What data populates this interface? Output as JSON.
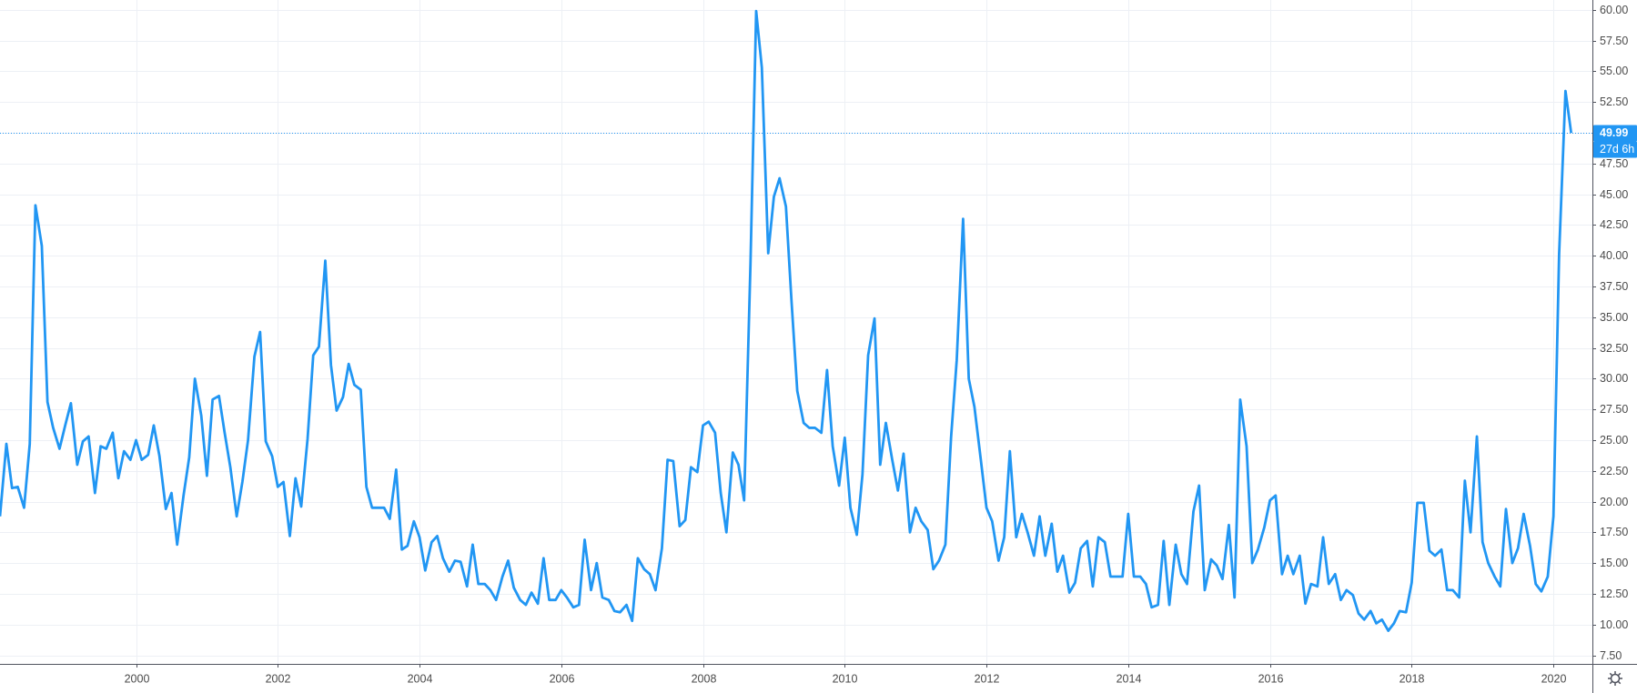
{
  "chart_data": {
    "type": "line",
    "color": "#2196f3",
    "grid": true,
    "xlim": [
      1998.08,
      2020.55
    ],
    "ylim": [
      6.8,
      60.8
    ],
    "xticks": [
      2000,
      2002,
      2004,
      2006,
      2008,
      2010,
      2012,
      2014,
      2016,
      2018,
      2020
    ],
    "yticks": [
      {
        "value": 7.5,
        "label": "7.50"
      },
      {
        "value": 10,
        "label": "10.00"
      },
      {
        "value": 12.5,
        "label": "12.50"
      },
      {
        "value": 15,
        "label": "15.00"
      },
      {
        "value": 17.5,
        "label": "17.50"
      },
      {
        "value": 20,
        "label": "20.00"
      },
      {
        "value": 22.5,
        "label": "22.50"
      },
      {
        "value": 25,
        "label": "25.00"
      },
      {
        "value": 27.5,
        "label": "27.50"
      },
      {
        "value": 30,
        "label": "30.00"
      },
      {
        "value": 32.5,
        "label": "32.50"
      },
      {
        "value": 35,
        "label": "35.00"
      },
      {
        "value": 37.5,
        "label": "37.50"
      },
      {
        "value": 40,
        "label": "40.00"
      },
      {
        "value": 42.5,
        "label": "42.50"
      },
      {
        "value": 45,
        "label": "45.00"
      },
      {
        "value": 47.5,
        "label": "47.50"
      },
      {
        "value": 50,
        "label": "50.00"
      },
      {
        "value": 52.5,
        "label": "52.50"
      },
      {
        "value": 55,
        "label": "55.00"
      },
      {
        "value": 57.5,
        "label": "57.50"
      },
      {
        "value": 60,
        "label": "60.00"
      }
    ],
    "x": [
      1998.08,
      1998.17,
      1998.25,
      1998.33,
      1998.42,
      1998.5,
      1998.58,
      1998.67,
      1998.75,
      1998.83,
      1998.92,
      1999,
      1999.08,
      1999.17,
      1999.25,
      1999.33,
      1999.42,
      1999.5,
      1999.58,
      1999.67,
      1999.75,
      1999.83,
      1999.92,
      2000,
      2000.08,
      2000.17,
      2000.25,
      2000.33,
      2000.42,
      2000.5,
      2000.58,
      2000.67,
      2000.75,
      2000.83,
      2000.92,
      2001,
      2001.08,
      2001.17,
      2001.25,
      2001.33,
      2001.42,
      2001.5,
      2001.58,
      2001.67,
      2001.75,
      2001.83,
      2001.92,
      2002,
      2002.08,
      2002.17,
      2002.25,
      2002.33,
      2002.42,
      2002.5,
      2002.58,
      2002.67,
      2002.75,
      2002.83,
      2002.92,
      2003,
      2003.08,
      2003.17,
      2003.25,
      2003.33,
      2003.42,
      2003.5,
      2003.58,
      2003.67,
      2003.75,
      2003.83,
      2003.92,
      2004,
      2004.08,
      2004.17,
      2004.25,
      2004.33,
      2004.42,
      2004.5,
      2004.58,
      2004.67,
      2004.75,
      2004.83,
      2004.92,
      2005,
      2005.08,
      2005.17,
      2005.25,
      2005.33,
      2005.42,
      2005.5,
      2005.58,
      2005.67,
      2005.75,
      2005.83,
      2005.92,
      2006,
      2006.08,
      2006.17,
      2006.25,
      2006.33,
      2006.42,
      2006.5,
      2006.58,
      2006.67,
      2006.75,
      2006.83,
      2006.92,
      2007,
      2007.08,
      2007.17,
      2007.25,
      2007.33,
      2007.42,
      2007.5,
      2007.58,
      2007.67,
      2007.75,
      2007.83,
      2007.92,
      2008,
      2008.08,
      2008.17,
      2008.25,
      2008.33,
      2008.42,
      2008.5,
      2008.58,
      2008.67,
      2008.75,
      2008.83,
      2008.92,
      2009,
      2009.08,
      2009.17,
      2009.25,
      2009.33,
      2009.42,
      2009.5,
      2009.58,
      2009.67,
      2009.75,
      2009.83,
      2009.92,
      2010,
      2010.08,
      2010.17,
      2010.25,
      2010.33,
      2010.42,
      2010.5,
      2010.58,
      2010.67,
      2010.75,
      2010.83,
      2010.92,
      2011,
      2011.08,
      2011.17,
      2011.25,
      2011.33,
      2011.42,
      2011.5,
      2011.58,
      2011.67,
      2011.75,
      2011.83,
      2011.92,
      2012,
      2012.08,
      2012.17,
      2012.25,
      2012.33,
      2012.42,
      2012.5,
      2012.58,
      2012.67,
      2012.75,
      2012.83,
      2012.92,
      2013,
      2013.08,
      2013.17,
      2013.25,
      2013.33,
      2013.42,
      2013.5,
      2013.58,
      2013.67,
      2013.75,
      2013.83,
      2013.92,
      2014,
      2014.08,
      2014.17,
      2014.25,
      2014.33,
      2014.42,
      2014.5,
      2014.58,
      2014.67,
      2014.75,
      2014.83,
      2014.92,
      2015,
      2015.08,
      2015.17,
      2015.25,
      2015.33,
      2015.42,
      2015.5,
      2015.58,
      2015.67,
      2015.75,
      2015.83,
      2015.92,
      2016,
      2016.08,
      2016.17,
      2016.25,
      2016.33,
      2016.42,
      2016.5,
      2016.58,
      2016.67,
      2016.75,
      2016.83,
      2016.92,
      2017,
      2017.08,
      2017.17,
      2017.25,
      2017.33,
      2017.42,
      2017.5,
      2017.58,
      2017.67,
      2017.75,
      2017.83,
      2017.92,
      2018,
      2018.08,
      2018.17,
      2018.25,
      2018.33,
      2018.42,
      2018.5,
      2018.58,
      2018.67,
      2018.75,
      2018.83,
      2018.92,
      2019,
      2019.08,
      2019.17,
      2019.25,
      2019.33,
      2019.42,
      2019.5,
      2019.58,
      2019.67,
      2019.75,
      2019.83,
      2019.92,
      2020,
      2020.08,
      2020.17,
      2020.25
    ],
    "values": [
      18.8,
      24.7,
      21.1,
      21.2,
      19.5,
      24.7,
      44.1,
      40.8,
      28.1,
      26.0,
      24.3,
      26.2,
      28.0,
      23.0,
      24.9,
      25.3,
      20.7,
      24.5,
      24.3,
      25.6,
      21.9,
      24.1,
      23.4,
      25.0,
      23.4,
      23.8,
      26.2,
      23.7,
      19.4,
      20.7,
      16.5,
      20.5,
      23.6,
      30.0,
      27.0,
      22.1,
      28.3,
      28.6,
      25.6,
      22.8,
      18.8,
      21.6,
      25.0,
      31.8,
      33.8,
      24.9,
      23.7,
      21.2,
      21.6,
      17.2,
      21.9,
      19.6,
      25.1,
      31.9,
      32.6,
      39.6,
      31.1,
      27.4,
      28.5,
      31.2,
      29.5,
      29.1,
      21.2,
      19.5,
      19.5,
      19.5,
      18.6,
      22.6,
      16.1,
      16.4,
      18.4,
      17.1,
      14.4,
      16.7,
      17.2,
      15.4,
      14.3,
      15.2,
      15.1,
      13.1,
      16.5,
      13.3,
      13.3,
      12.8,
      12.0,
      13.9,
      15.2,
      13.0,
      12.0,
      11.6,
      12.6,
      11.7,
      15.4,
      12.0,
      12.0,
      12.8,
      12.2,
      11.4,
      11.6,
      16.9,
      12.8,
      15.0,
      12.2,
      12.0,
      11.1,
      11.0,
      11.6,
      10.3,
      15.4,
      14.5,
      14.1,
      12.8,
      16.2,
      23.4,
      23.3,
      18.0,
      18.5,
      22.8,
      22.4,
      26.2,
      26.5,
      25.6,
      20.7,
      17.5,
      24.0,
      23.0,
      20.1,
      39.4,
      59.9,
      55.3,
      40.2,
      44.8,
      46.3,
      44.0,
      36.2,
      29.0,
      26.4,
      26.0,
      26.0,
      25.6,
      30.7,
      24.5,
      21.3,
      25.2,
      19.5,
      17.3,
      22.2,
      31.9,
      34.9,
      23.0,
      26.4,
      23.4,
      20.9,
      23.9,
      17.5,
      19.5,
      18.4,
      17.7,
      14.5,
      15.2,
      16.5,
      25.2,
      31.5,
      43.0,
      30.0,
      27.7,
      23.4,
      19.5,
      18.4,
      15.2,
      17.1,
      24.1,
      17.1,
      19.0,
      17.5,
      15.6,
      18.8,
      15.6,
      18.2,
      14.3,
      15.6,
      12.6,
      13.4,
      16.2,
      16.8,
      13.1,
      17.1,
      16.7,
      13.9,
      13.9,
      13.9,
      19.0,
      13.9,
      13.9,
      13.3,
      11.4,
      11.6,
      16.8,
      11.6,
      16.5,
      14.1,
      13.3,
      19.2,
      21.3,
      12.8,
      15.3,
      14.8,
      13.7,
      18.1,
      12.2,
      28.3,
      24.5,
      15.0,
      16.1,
      17.9,
      20.1,
      20.5,
      14.1,
      15.6,
      14.1,
      15.6,
      11.7,
      13.3,
      13.1,
      17.1,
      13.3,
      14.1,
      12.0,
      12.8,
      12.4,
      10.9,
      10.4,
      11.1,
      10.1,
      10.4,
      9.5,
      10.1,
      11.1,
      11.0,
      13.4,
      19.9,
      19.9,
      16.0,
      15.6,
      16.1,
      12.8,
      12.8,
      12.2,
      21.7,
      17.5,
      25.3,
      16.7,
      15.0,
      13.9,
      13.1,
      19.4,
      15.0,
      16.2,
      19.0,
      16.4,
      13.3,
      12.7,
      13.9,
      18.8,
      40.1,
      53.4,
      49.99
    ],
    "last_price_label": "49.99",
    "countdown": "27d 6h"
  }
}
